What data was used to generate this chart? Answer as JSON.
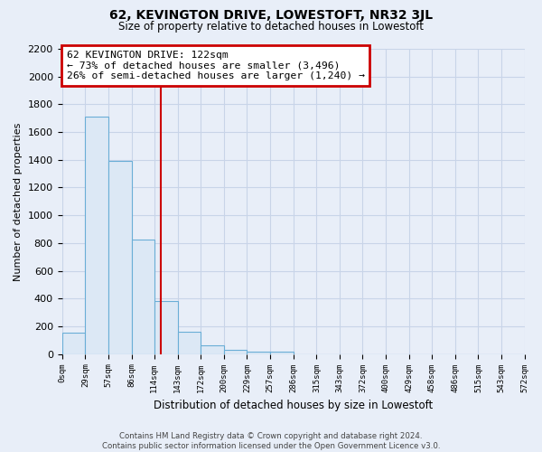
{
  "title": "62, KEVINGTON DRIVE, LOWESTOFT, NR32 3JL",
  "subtitle": "Size of property relative to detached houses in Lowestoft",
  "xlabel": "Distribution of detached houses by size in Lowestoft",
  "ylabel": "Number of detached properties",
  "bin_edges": [
    0,
    29,
    57,
    86,
    114,
    143,
    172,
    200,
    229,
    257,
    286,
    315,
    343,
    372,
    400,
    429,
    458,
    486,
    515,
    543,
    572
  ],
  "bar_heights": [
    155,
    1710,
    1390,
    825,
    380,
    160,
    65,
    30,
    20,
    20,
    0,
    0,
    0,
    0,
    0,
    0,
    0,
    0,
    0,
    0
  ],
  "bar_color": "#dce8f5",
  "bar_edge_color": "#6aaed6",
  "property_size": 122,
  "vline_color": "#cc0000",
  "annotation_line1": "62 KEVINGTON DRIVE: 122sqm",
  "annotation_line2": "← 73% of detached houses are smaller (3,496)",
  "annotation_line3": "26% of semi-detached houses are larger (1,240) →",
  "annotation_box_edgecolor": "#cc0000",
  "ylim": [
    0,
    2200
  ],
  "yticks": [
    0,
    200,
    400,
    600,
    800,
    1000,
    1200,
    1400,
    1600,
    1800,
    2000,
    2200
  ],
  "tick_labels": [
    "0sqm",
    "29sqm",
    "57sqm",
    "86sqm",
    "114sqm",
    "143sqm",
    "172sqm",
    "200sqm",
    "229sqm",
    "257sqm",
    "286sqm",
    "315sqm",
    "343sqm",
    "372sqm",
    "400sqm",
    "429sqm",
    "458sqm",
    "486sqm",
    "515sqm",
    "543sqm",
    "572sqm"
  ],
  "footer_text": "Contains HM Land Registry data © Crown copyright and database right 2024.\nContains public sector information licensed under the Open Government Licence v3.0.",
  "background_color": "#e8eef8",
  "plot_bg_color": "#e8eef8",
  "grid_color": "#c8d4e8"
}
